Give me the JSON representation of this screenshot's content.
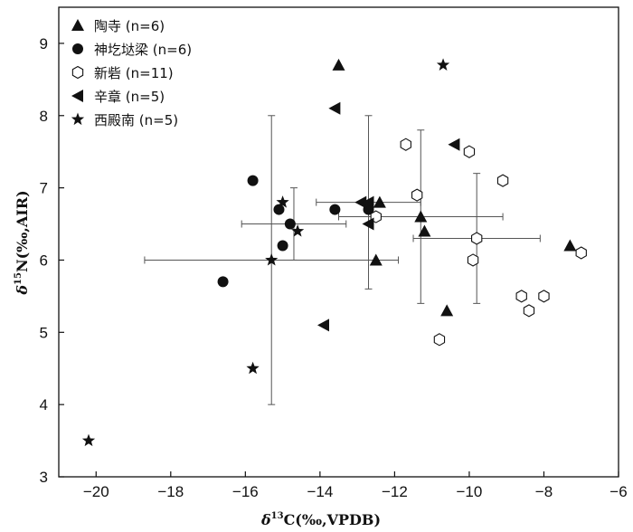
{
  "chart_data": {
    "type": "scatter",
    "xlabel_prefix": "δ",
    "xlabel_sup": "13",
    "xlabel_rest": "C(‰,VPDB)",
    "ylabel_prefix": "δ",
    "ylabel_sup": "15",
    "ylabel_rest": "N(‰,AIR)",
    "xlim": [
      -21,
      -6
    ],
    "ylim": [
      3,
      9.5
    ],
    "xticks": [
      -20,
      -18,
      -16,
      -14,
      -12,
      -10,
      -8,
      -6
    ],
    "xtick_labels": [
      "−20",
      "−18",
      "−16",
      "−14",
      "−12",
      "−10",
      "−8",
      "−6"
    ],
    "yticks": [
      3,
      4,
      5,
      6,
      7,
      8,
      9
    ],
    "ytick_labels": [
      "3",
      "4",
      "5",
      "6",
      "7",
      "8",
      "9"
    ],
    "grid": false,
    "legend_position": "top-left",
    "series": [
      {
        "name": "陶寺 (n=6)",
        "marker": "triangle-up",
        "points": [
          [
            -13.5,
            8.7
          ],
          [
            -11.3,
            6.6
          ],
          [
            -11.2,
            6.4
          ],
          [
            -12.4,
            6.8
          ],
          [
            -12.5,
            6.0
          ],
          [
            -10.6,
            5.3
          ],
          [
            -7.3,
            6.2
          ]
        ]
      },
      {
        "name": "神圪垯梁 (n=6)",
        "marker": "circle",
        "points": [
          [
            -15.8,
            7.1
          ],
          [
            -15.1,
            6.7
          ],
          [
            -14.8,
            6.5
          ],
          [
            -15.0,
            6.2
          ],
          [
            -13.6,
            6.7
          ],
          [
            -12.7,
            6.7
          ],
          [
            -16.6,
            5.7
          ]
        ]
      },
      {
        "name": "新砦 (n=11)",
        "marker": "hexagon-open",
        "points": [
          [
            -11.7,
            7.6
          ],
          [
            -11.4,
            6.9
          ],
          [
            -12.5,
            6.6
          ],
          [
            -10.0,
            7.5
          ],
          [
            -9.1,
            7.1
          ],
          [
            -9.8,
            6.3
          ],
          [
            -9.9,
            6.0
          ],
          [
            -7.0,
            6.1
          ],
          [
            -8.6,
            5.5
          ],
          [
            -8.0,
            5.5
          ],
          [
            -8.4,
            5.3
          ],
          [
            -10.8,
            4.9
          ]
        ]
      },
      {
        "name": "辛章 (n=5)",
        "marker": "triangle-left",
        "points": [
          [
            -13.6,
            8.1
          ],
          [
            -10.4,
            7.6
          ],
          [
            -12.9,
            6.8
          ],
          [
            -12.7,
            6.8
          ],
          [
            -12.7,
            6.5
          ],
          [
            -13.9,
            5.1
          ]
        ]
      },
      {
        "name": "西殿南 (n=5)",
        "marker": "star",
        "points": [
          [
            -10.7,
            8.7
          ],
          [
            -15.0,
            6.8
          ],
          [
            -14.6,
            6.4
          ],
          [
            -15.3,
            6.0
          ],
          [
            -15.8,
            4.5
          ],
          [
            -20.2,
            3.5
          ]
        ]
      }
    ],
    "error_bars": [
      {
        "x": -15.3,
        "y": 6.0,
        "xerr": 3.4,
        "yerr": 2.0
      },
      {
        "x": -14.7,
        "y": 6.5,
        "xerr": 1.4,
        "yerr": 0.5
      },
      {
        "x": -12.7,
        "y": 6.8,
        "xerr": 1.4,
        "yerr": 1.2
      },
      {
        "x": -11.3,
        "y": 6.6,
        "xerr": 2.2,
        "yerr": 1.2
      },
      {
        "x": -9.8,
        "y": 6.3,
        "xerr": 1.7,
        "yerr": 0.9
      }
    ]
  }
}
